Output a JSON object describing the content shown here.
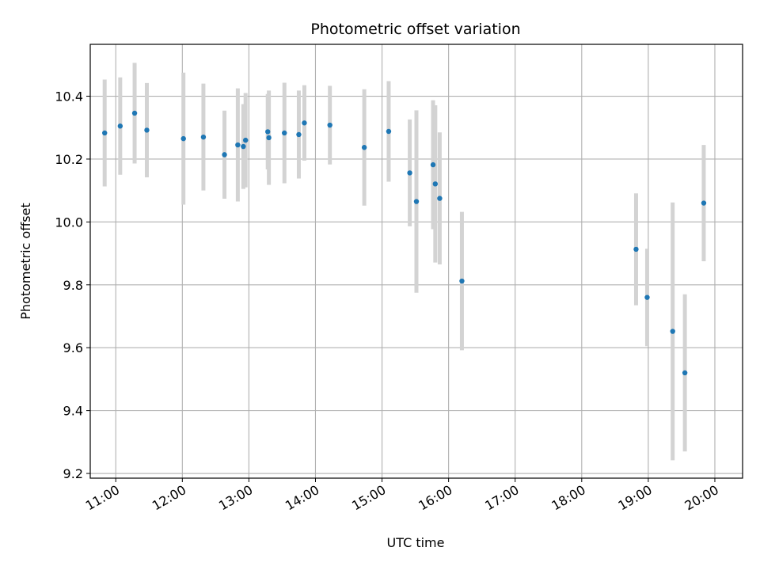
{
  "chart_data": {
    "type": "scatter",
    "title": "Photometric offset variation",
    "xlabel": "UTC time",
    "ylabel": "Photometric offset",
    "x_tick_labels": [
      "11:00",
      "12:00",
      "13:00",
      "14:00",
      "15:00",
      "16:00",
      "17:00",
      "18:00",
      "19:00",
      "20:00"
    ],
    "y_tick_labels": [
      "9.2",
      "9.4",
      "9.6",
      "9.8",
      "10.0",
      "10.2",
      "10.4"
    ],
    "xlim": [
      "10:37",
      "20:25"
    ],
    "ylim": [
      9.185,
      10.565
    ],
    "grid": true,
    "marker_color": "#1f77b4",
    "errorbar_color": "#d3d3d3",
    "series": [
      {
        "points": [
          {
            "x": "10:50",
            "y": 10.283,
            "err": 0.17
          },
          {
            "x": "11:04",
            "y": 10.305,
            "err": 0.155
          },
          {
            "x": "11:17",
            "y": 10.346,
            "err": 0.16
          },
          {
            "x": "11:28",
            "y": 10.292,
            "err": 0.15
          },
          {
            "x": "12:01",
            "y": 10.265,
            "err": 0.21
          },
          {
            "x": "12:19",
            "y": 10.27,
            "err": 0.17
          },
          {
            "x": "12:38",
            "y": 10.214,
            "err": 0.14
          },
          {
            "x": "12:50",
            "y": 10.245,
            "err": 0.18
          },
          {
            "x": "12:55",
            "y": 10.24,
            "err": 0.135
          },
          {
            "x": "12:57",
            "y": 10.26,
            "err": 0.15
          },
          {
            "x": "13:17",
            "y": 10.287,
            "err": 0.12
          },
          {
            "x": "13:18",
            "y": 10.268,
            "err": 0.15
          },
          {
            "x": "13:32",
            "y": 10.283,
            "err": 0.16
          },
          {
            "x": "13:45",
            "y": 10.278,
            "err": 0.14
          },
          {
            "x": "13:50",
            "y": 10.315,
            "err": 0.12
          },
          {
            "x": "14:13",
            "y": 10.308,
            "err": 0.125
          },
          {
            "x": "14:44",
            "y": 10.237,
            "err": 0.185
          },
          {
            "x": "15:06",
            "y": 10.288,
            "err": 0.16
          },
          {
            "x": "15:25",
            "y": 10.156,
            "err": 0.17
          },
          {
            "x": "15:31",
            "y": 10.065,
            "err": 0.29
          },
          {
            "x": "15:46",
            "y": 10.182,
            "err": 0.205
          },
          {
            "x": "15:48",
            "y": 10.121,
            "err": 0.25
          },
          {
            "x": "15:52",
            "y": 10.075,
            "err": 0.21
          },
          {
            "x": "16:12",
            "y": 9.812,
            "err": 0.22
          },
          {
            "x": "18:49",
            "y": 9.913,
            "err": 0.178
          },
          {
            "x": "18:59",
            "y": 9.76,
            "err": 0.155
          },
          {
            "x": "19:22",
            "y": 9.652,
            "err": 0.41
          },
          {
            "x": "19:33",
            "y": 9.52,
            "err": 0.25
          },
          {
            "x": "19:50",
            "y": 10.06,
            "err": 0.185
          }
        ]
      }
    ]
  }
}
